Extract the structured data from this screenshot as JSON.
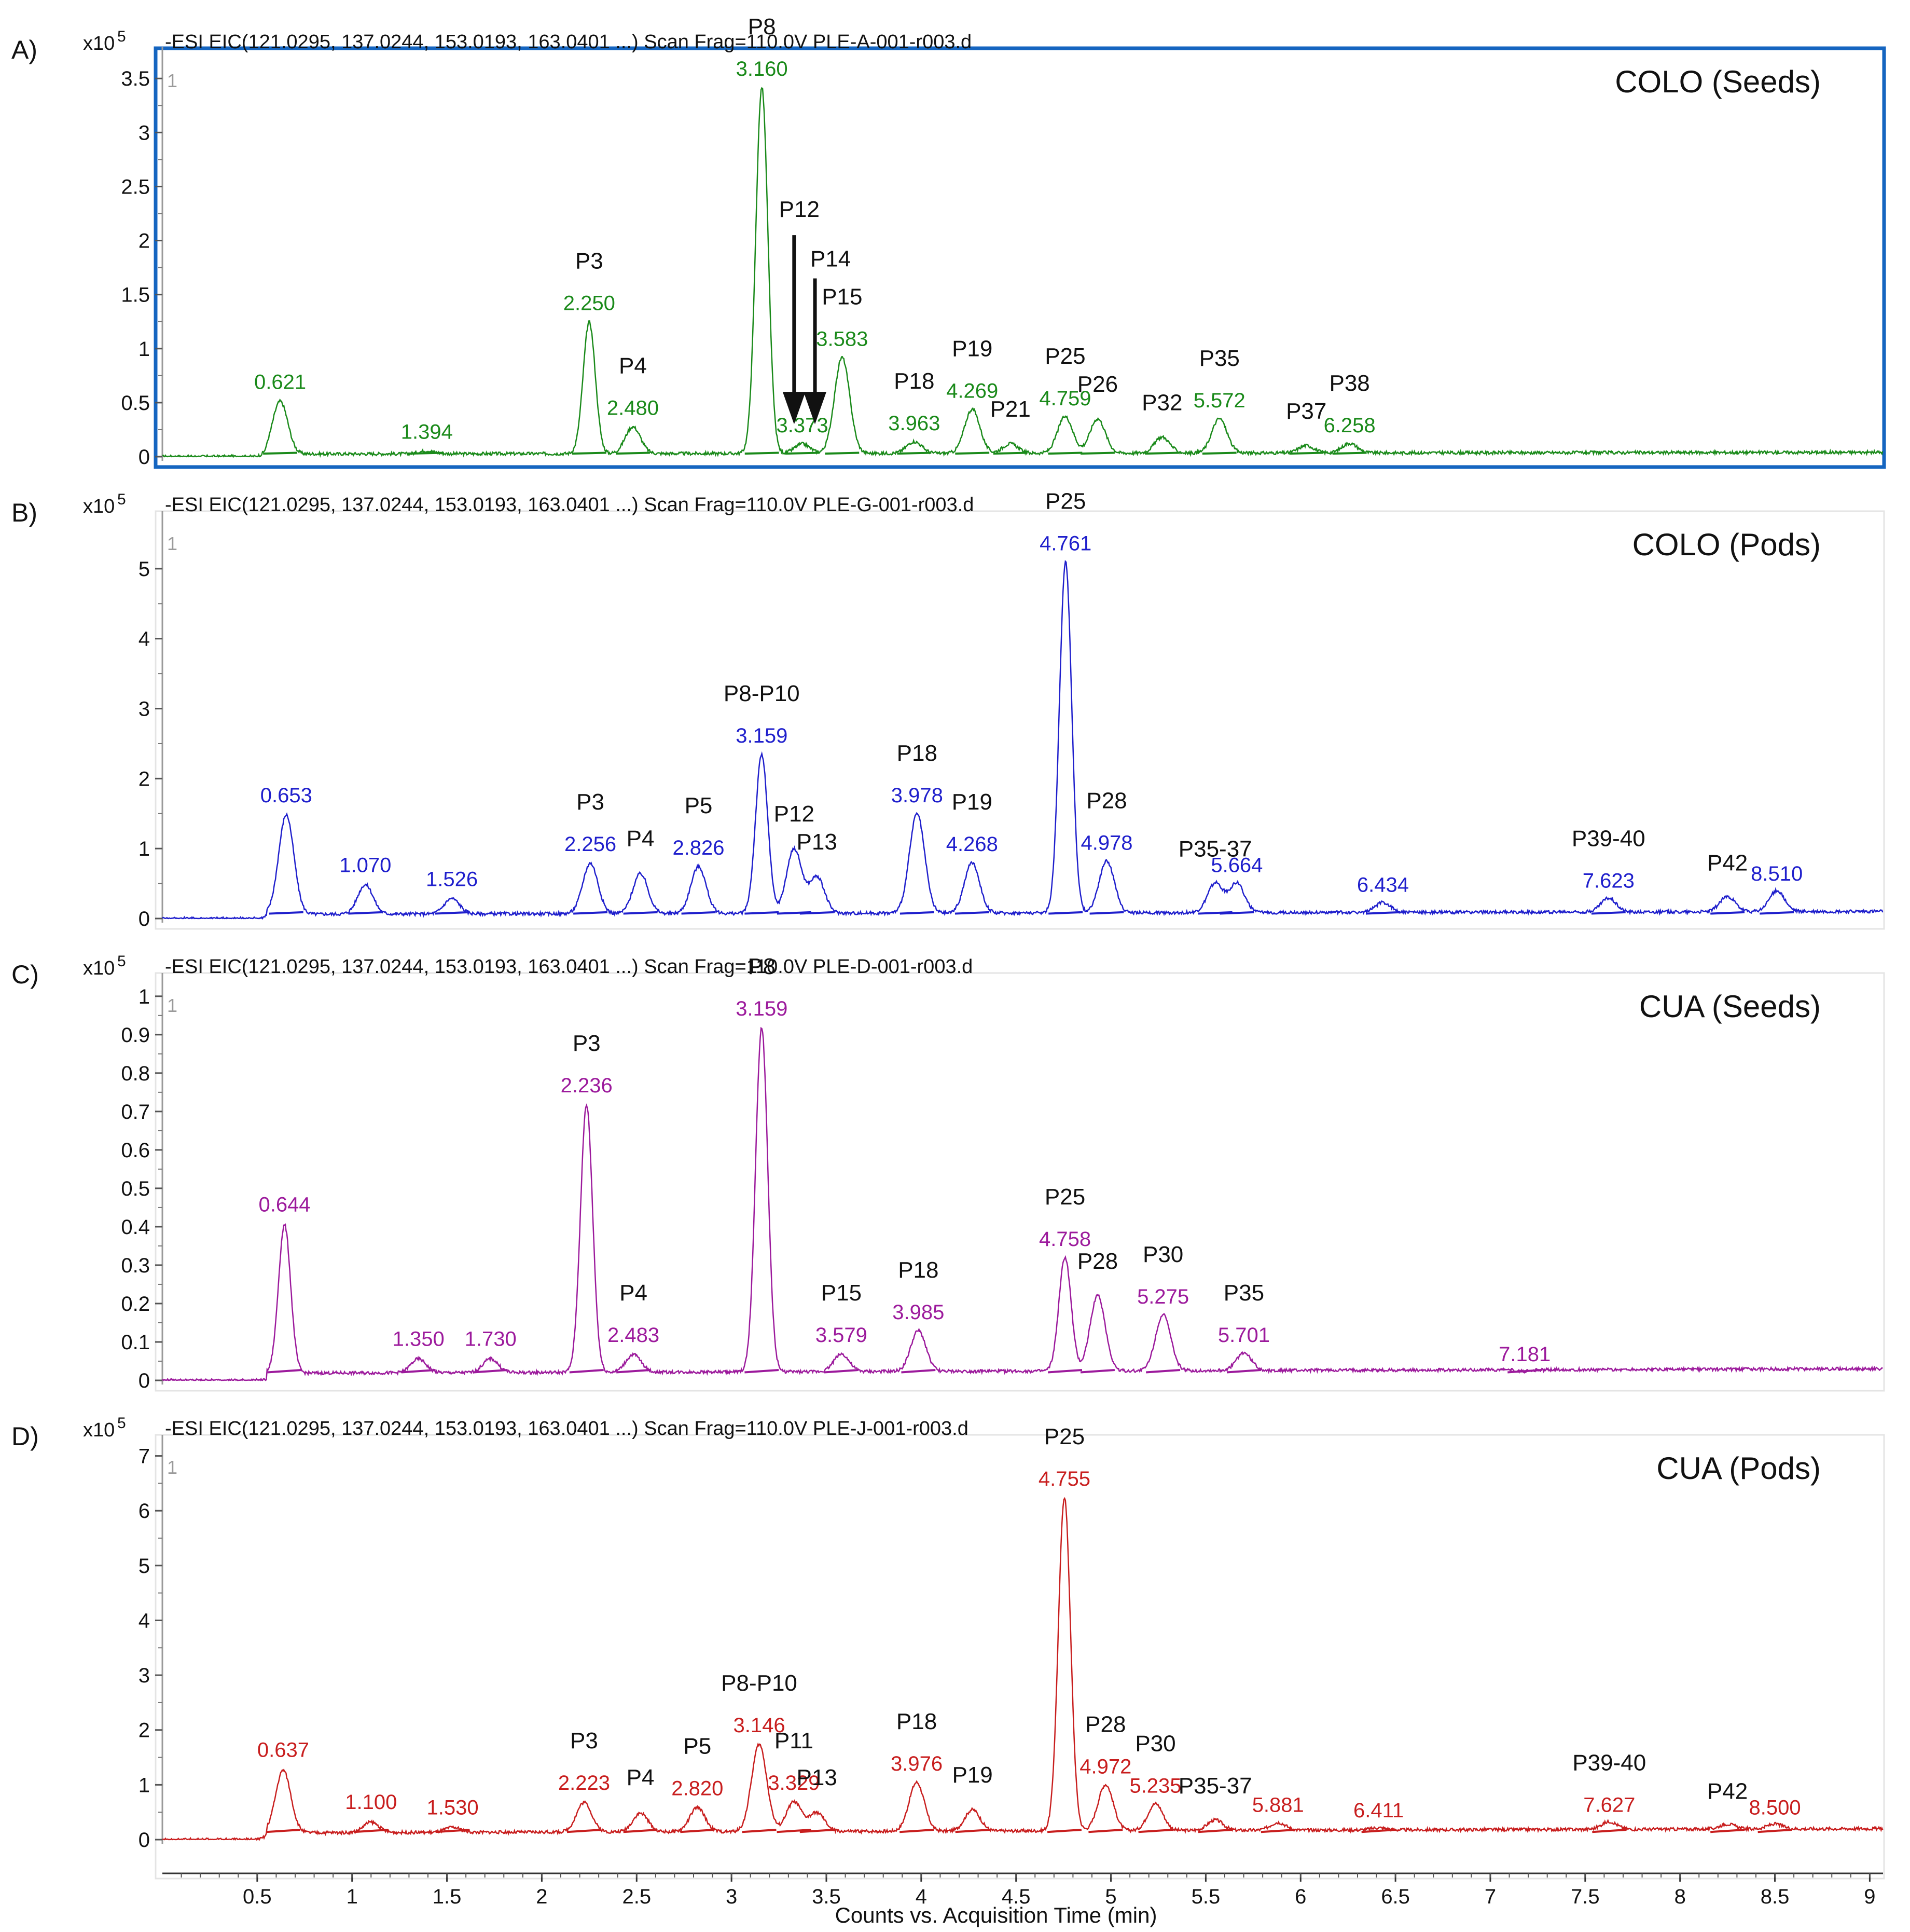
{
  "chart_data": [
    {
      "type": "line",
      "panel_letter": "A)",
      "scale_label": "x10",
      "scale_exp": "5",
      "header": "-ESI EIC(121.0295, 137.0244, 153.0193, 163.0401 ...) Scan Frag=110.0V PLE-A-001-r003.d",
      "plot_index": "1",
      "title": "COLO (Seeds)",
      "color": "#1a8a1a",
      "highlight_border": "#1565c0",
      "ylim": [
        0,
        3.65
      ],
      "yticks": [
        0,
        0.5,
        1,
        1.5,
        2,
        2.5,
        3,
        3.5
      ],
      "ytick_labels": [
        "0",
        "0.5",
        "1",
        "1.5",
        "2",
        "2.5",
        "3",
        "3.5"
      ],
      "baseline": 0.04,
      "peaks": [
        {
          "rt": 0.621,
          "height": 0.52,
          "label": "0.621",
          "peak_id": ""
        },
        {
          "rt": 1.394,
          "height": 0.06,
          "label": "1.394",
          "peak_id": ""
        },
        {
          "rt": 2.25,
          "height": 1.25,
          "label": "2.250",
          "peak_id": "P3"
        },
        {
          "rt": 2.48,
          "height": 0.28,
          "label": "2.480",
          "peak_id": "P4"
        },
        {
          "rt": 3.16,
          "height": 3.42,
          "label": "3.160",
          "peak_id": "P8"
        },
        {
          "rt": 3.373,
          "height": 0.12,
          "label": "3.373",
          "peak_id": ""
        },
        {
          "rt": 3.583,
          "height": 0.92,
          "label": "3.583",
          "peak_id": "P15"
        },
        {
          "rt": 3.963,
          "height": 0.14,
          "label": "3.963",
          "peak_id": "P18"
        },
        {
          "rt": 4.269,
          "height": 0.44,
          "label": "4.269",
          "peak_id": "P19"
        },
        {
          "rt": 4.47,
          "height": 0.12,
          "label": "",
          "peak_id": "P21"
        },
        {
          "rt": 4.759,
          "height": 0.37,
          "label": "4.759",
          "peak_id": "P25"
        },
        {
          "rt": 4.93,
          "height": 0.35,
          "label": "",
          "peak_id": "P26"
        },
        {
          "rt": 5.27,
          "height": 0.18,
          "label": "",
          "peak_id": "P32"
        },
        {
          "rt": 5.572,
          "height": 0.35,
          "label": "5.572",
          "peak_id": "P35"
        },
        {
          "rt": 6.03,
          "height": 0.1,
          "label": "",
          "peak_id": "P37"
        },
        {
          "rt": 6.258,
          "height": 0.12,
          "label": "6.258",
          "peak_id": "P38"
        }
      ],
      "arrow_labels": [
        "P12",
        "P14"
      ]
    },
    {
      "type": "line",
      "panel_letter": "B)",
      "scale_label": "x10",
      "scale_exp": "5",
      "header": "-ESI EIC(121.0295, 137.0244, 153.0193, 163.0401 ...) Scan Frag=110.0V PLE-G-001-r003.d",
      "plot_index": "1",
      "title": "COLO (Pods)",
      "color": "#1f1fcc",
      "ylim": [
        0,
        5.6
      ],
      "yticks": [
        0,
        1,
        2,
        3,
        4,
        5
      ],
      "ytick_labels": [
        "0",
        "1",
        "2",
        "3",
        "4",
        "5"
      ],
      "baseline": 0.1,
      "peaks": [
        {
          "rt": 0.653,
          "height": 1.5,
          "label": "0.653",
          "peak_id": ""
        },
        {
          "rt": 1.07,
          "height": 0.5,
          "label": "1.070",
          "peak_id": ""
        },
        {
          "rt": 1.526,
          "height": 0.3,
          "label": "1.526",
          "peak_id": ""
        },
        {
          "rt": 2.256,
          "height": 0.8,
          "label": "2.256",
          "peak_id": "P3"
        },
        {
          "rt": 2.52,
          "height": 0.65,
          "label": "",
          "peak_id": "P4"
        },
        {
          "rt": 2.826,
          "height": 0.75,
          "label": "2.826",
          "peak_id": "P5"
        },
        {
          "rt": 3.159,
          "height": 2.35,
          "label": "3.159",
          "peak_id": "P8-P10"
        },
        {
          "rt": 3.33,
          "height": 1.0,
          "label": "",
          "peak_id": "P12"
        },
        {
          "rt": 3.45,
          "height": 0.6,
          "label": "",
          "peak_id": "P13"
        },
        {
          "rt": 3.978,
          "height": 1.5,
          "label": "3.978",
          "peak_id": "P18"
        },
        {
          "rt": 4.268,
          "height": 0.8,
          "label": "4.268",
          "peak_id": "P19"
        },
        {
          "rt": 4.761,
          "height": 5.1,
          "label": "4.761",
          "peak_id": "P25"
        },
        {
          "rt": 4.978,
          "height": 0.82,
          "label": "4.978",
          "peak_id": "P28"
        },
        {
          "rt": 5.55,
          "height": 0.5,
          "label": "",
          "peak_id": "P35-37"
        },
        {
          "rt": 5.664,
          "height": 0.5,
          "label": "5.664",
          "peak_id": ""
        },
        {
          "rt": 6.434,
          "height": 0.22,
          "label": "6.434",
          "peak_id": ""
        },
        {
          "rt": 7.623,
          "height": 0.28,
          "label": "7.623",
          "peak_id": "P39-40"
        },
        {
          "rt": 8.25,
          "height": 0.3,
          "label": "",
          "peak_id": "P42"
        },
        {
          "rt": 8.51,
          "height": 0.38,
          "label": "8.510",
          "peak_id": ""
        }
      ]
    },
    {
      "type": "line",
      "panel_letter": "C)",
      "scale_label": "x10",
      "scale_exp": "5",
      "header": "-ESI EIC(121.0295, 137.0244, 153.0193, 163.0401 ...) Scan Frag=110.0V PLE-D-001-r003.d",
      "plot_index": "1",
      "title": "CUA (Seeds)",
      "color": "#9c1a9c",
      "ylim": [
        0,
        1.02
      ],
      "yticks": [
        0,
        0.1,
        0.2,
        0.3,
        0.4,
        0.5,
        0.6,
        0.7,
        0.8,
        0.9,
        1
      ],
      "ytick_labels": [
        "0",
        "0.1",
        "0.2",
        "0.3",
        "0.4",
        "0.5",
        "0.6",
        "0.7",
        "0.8",
        "0.9",
        "1"
      ],
      "baseline": 0.03,
      "peaks": [
        {
          "rt": 0.644,
          "height": 0.41,
          "label": "0.644",
          "peak_id": ""
        },
        {
          "rt": 1.35,
          "height": 0.06,
          "label": "1.350",
          "peak_id": ""
        },
        {
          "rt": 1.73,
          "height": 0.06,
          "label": "1.730",
          "peak_id": ""
        },
        {
          "rt": 2.236,
          "height": 0.72,
          "label": "2.236",
          "peak_id": "P3"
        },
        {
          "rt": 2.483,
          "height": 0.07,
          "label": "2.483",
          "peak_id": "P4"
        },
        {
          "rt": 3.159,
          "height": 0.92,
          "label": "3.159",
          "peak_id": "P8"
        },
        {
          "rt": 3.579,
          "height": 0.07,
          "label": "3.579",
          "peak_id": "P15"
        },
        {
          "rt": 3.985,
          "height": 0.13,
          "label": "3.985",
          "peak_id": "P18"
        },
        {
          "rt": 4.758,
          "height": 0.32,
          "label": "4.758",
          "peak_id": "P25"
        },
        {
          "rt": 4.93,
          "height": 0.22,
          "label": "",
          "peak_id": "P28"
        },
        {
          "rt": 5.275,
          "height": 0.17,
          "label": "5.275",
          "peak_id": "P30"
        },
        {
          "rt": 5.701,
          "height": 0.07,
          "label": "5.701",
          "peak_id": "P35"
        },
        {
          "rt": 7.181,
          "height": 0.02,
          "label": "7.181",
          "peak_id": ""
        }
      ]
    },
    {
      "type": "line",
      "panel_letter": "D)",
      "scale_label": "x10",
      "scale_exp": "5",
      "header": "-ESI EIC(121.0295, 137.0244, 153.0193, 163.0401 ...) Scan Frag=110.0V PLE-J-001-r003.d",
      "plot_index": "1",
      "title": "CUA (Pods)",
      "color": "#c81e1e",
      "ylim": [
        0,
        7.1
      ],
      "yticks": [
        0,
        1,
        2,
        3,
        4,
        5,
        6,
        7
      ],
      "ytick_labels": [
        "0",
        "1",
        "2",
        "3",
        "4",
        "5",
        "6",
        "7"
      ],
      "baseline": 0.2,
      "peaks": [
        {
          "rt": 0.637,
          "height": 1.3,
          "label": "0.637",
          "peak_id": ""
        },
        {
          "rt": 1.1,
          "height": 0.35,
          "label": "1.100",
          "peak_id": ""
        },
        {
          "rt": 1.53,
          "height": 0.25,
          "label": "1.530",
          "peak_id": ""
        },
        {
          "rt": 2.223,
          "height": 0.7,
          "label": "2.223",
          "peak_id": "P3"
        },
        {
          "rt": 2.52,
          "height": 0.5,
          "label": "",
          "peak_id": "P4"
        },
        {
          "rt": 2.82,
          "height": 0.6,
          "label": "2.820",
          "peak_id": "P5"
        },
        {
          "rt": 3.146,
          "height": 1.75,
          "label": "3.146",
          "peak_id": "P8-P10"
        },
        {
          "rt": 3.329,
          "height": 0.7,
          "label": "3.329",
          "peak_id": "P11"
        },
        {
          "rt": 3.45,
          "height": 0.5,
          "label": "",
          "peak_id": "P13"
        },
        {
          "rt": 3.976,
          "height": 1.05,
          "label": "3.976",
          "peak_id": "P18"
        },
        {
          "rt": 4.27,
          "height": 0.55,
          "label": "",
          "peak_id": "P19"
        },
        {
          "rt": 4.755,
          "height": 6.25,
          "label": "4.755",
          "peak_id": "P25"
        },
        {
          "rt": 4.972,
          "height": 1.0,
          "label": "4.972",
          "peak_id": "P28"
        },
        {
          "rt": 5.235,
          "height": 0.65,
          "label": "5.235",
          "peak_id": "P30"
        },
        {
          "rt": 5.55,
          "height": 0.35,
          "label": "",
          "peak_id": "P35-37"
        },
        {
          "rt": 5.881,
          "height": 0.3,
          "label": "5.881",
          "peak_id": ""
        },
        {
          "rt": 6.411,
          "height": 0.2,
          "label": "6.411",
          "peak_id": ""
        },
        {
          "rt": 7.627,
          "height": 0.3,
          "label": "7.627",
          "peak_id": "P39-40"
        },
        {
          "rt": 8.25,
          "height": 0.25,
          "label": "",
          "peak_id": "P42"
        },
        {
          "rt": 8.5,
          "height": 0.25,
          "label": "8.500",
          "peak_id": ""
        }
      ]
    }
  ],
  "x_axis": {
    "label": "Counts vs. Acquisition Time (min)",
    "xlim": [
      0.0,
      9.07
    ],
    "ticks": [
      0.5,
      1,
      1.5,
      2,
      2.5,
      3,
      3.5,
      4,
      4.5,
      5,
      5.5,
      6,
      6.5,
      7,
      7.5,
      8,
      8.5,
      9
    ],
    "tick_labels": [
      "0.5",
      "1",
      "1.5",
      "2",
      "2.5",
      "3",
      "3.5",
      "4",
      "4.5",
      "5",
      "5.5",
      "6",
      "6.5",
      "7",
      "7.5",
      "8",
      "8.5",
      "9"
    ]
  }
}
